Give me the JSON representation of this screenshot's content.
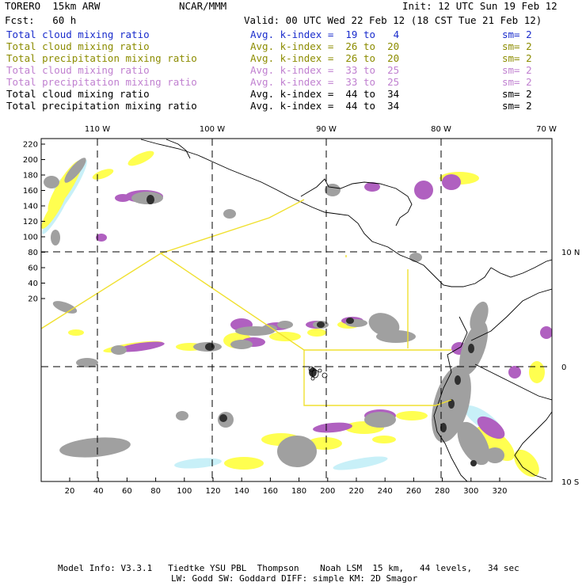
{
  "header": {
    "model": "TORERO  15km ARW",
    "org": "NCAR/MMM",
    "init": "Init: 12 UTC Sun 19 Feb 12",
    "fcst": "Fcst:   60 h",
    "valid": "Valid: 00 UTC Wed 22 Feb 12 (18 CST Tue 21 Feb 12)"
  },
  "legend": [
    {
      "field": "Total cloud mixing ratio",
      "kindex": "Avg. k-index =  19 to   4",
      "sm": "sm= 2",
      "color": "#1a2ccc"
    },
    {
      "field": "Total cloud mixing ratio",
      "kindex": "Avg. k-index =  26 to  20",
      "sm": "sm= 2",
      "color": "#8c8c00"
    },
    {
      "field": "Total precipitation mixing ratio",
      "kindex": "Avg. k-index =  26 to  20",
      "sm": "sm= 2",
      "color": "#8c8c00"
    },
    {
      "field": "Total cloud mixing ratio",
      "kindex": "Avg. k-index =  33 to  25",
      "sm": "sm= 2",
      "color": "#c080d0"
    },
    {
      "field": "Total precipitation mixing ratio",
      "kindex": "Avg. k-index =  33 to  25",
      "sm": "sm= 2",
      "color": "#c080d0"
    },
    {
      "field": "Total cloud mixing ratio",
      "kindex": "Avg. k-index =  44 to  34",
      "sm": "sm= 2",
      "color": "#000000"
    },
    {
      "field": "Total precipitation mixing ratio",
      "kindex": "Avg. k-index =  44 to  34",
      "sm": "sm= 2",
      "color": "#000000"
    }
  ],
  "map": {
    "lon_labels": [
      "110 W",
      "100 W",
      "90 W",
      "80 W",
      "70 W"
    ],
    "lat_labels": [
      "10 N",
      "0",
      "10 S"
    ],
    "y_ticks": [
      "220",
      "200",
      "180",
      "160",
      "140",
      "120",
      "100",
      "80",
      "60",
      "40",
      "20"
    ],
    "x_ticks": [
      "20",
      "40",
      "60",
      "80",
      "100",
      "120",
      "140",
      "160",
      "180",
      "200",
      "220",
      "240",
      "260",
      "280",
      "300",
      "320"
    ],
    "shading_colors": {
      "light_cyan": "#c8f0f8",
      "yellow": "#ffff50",
      "purple": "#b060c0",
      "gray": "#a0a0a0",
      "dark": "#303030",
      "domain_box": "#f0e030"
    }
  },
  "footer": {
    "line1": "Model Info: V3.3.1   Tiedtke YSU PBL  Thompson    Noah LSM  15 km,   44 levels,   34 sec",
    "line2": "LW: Godd SW: Goddard DIFF: simple KM: 2D Smagor"
  }
}
